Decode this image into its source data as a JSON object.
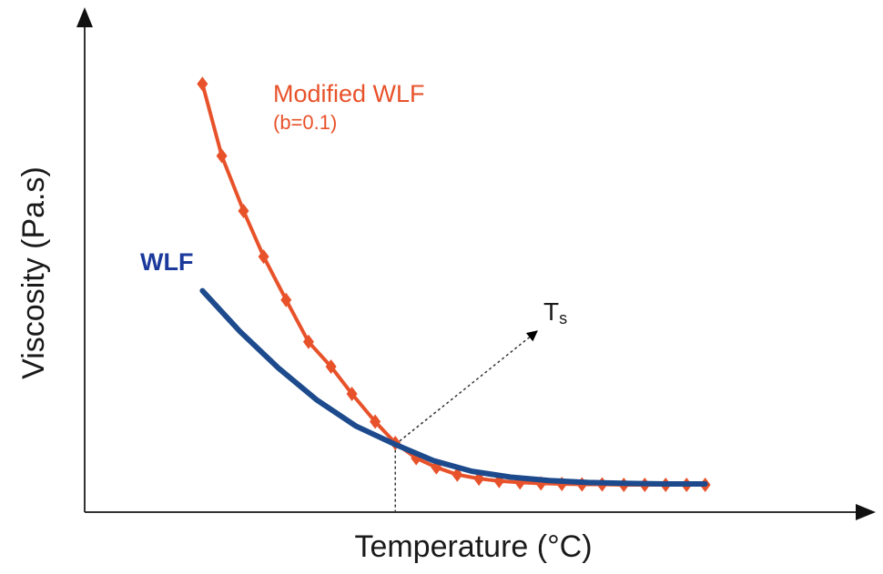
{
  "chart_data": {
    "type": "line",
    "title": "",
    "xlabel": "Temperature (°C)",
    "ylabel": "Viscosity (Pa.s)",
    "grid": false,
    "xlim": [
      0,
      100
    ],
    "ylim": [
      0,
      100
    ],
    "ticks_shown": false,
    "series": [
      {
        "name": "Modified WLF",
        "sublabel": "(b=0.1)",
        "color": "#e8522a",
        "marker": "diamond",
        "x": [
          15.2,
          17.7,
          20.5,
          23.1,
          26.0,
          28.9,
          31.8,
          34.5,
          37.5,
          40.1,
          42.8,
          45.4,
          48.1,
          50.9,
          53.5,
          56.2,
          58.9,
          61.6,
          64.2,
          66.8,
          69.6,
          72.3,
          75.0,
          77.7,
          80.1
        ],
        "y": [
          88.0,
          73.2,
          61.9,
          52.5,
          43.6,
          35.0,
          29.9,
          24.3,
          18.6,
          14.2,
          11.1,
          9.2,
          7.7,
          6.9,
          6.4,
          6.1,
          5.9,
          5.8,
          5.7,
          5.7,
          5.6,
          5.6,
          5.6,
          5.6,
          5.6
        ]
      },
      {
        "name": "WLF",
        "color": "#1c4a8c",
        "marker": "none",
        "x": [
          15.2,
          20.0,
          25.0,
          30.0,
          35.0,
          40.1,
          45.0,
          50.0,
          55.0,
          60.0,
          65.0,
          70.0,
          75.0,
          80.1
        ],
        "y": [
          45.5,
          37.2,
          29.6,
          23.0,
          17.7,
          13.9,
          10.6,
          8.4,
          7.2,
          6.5,
          6.1,
          5.9,
          5.8,
          5.8
        ]
      }
    ],
    "annotations": [
      {
        "text": "T",
        "subscript": "s",
        "x": 40.1,
        "y": 13.9,
        "kind": "dotted-arrow-and-drop-line"
      }
    ]
  }
}
